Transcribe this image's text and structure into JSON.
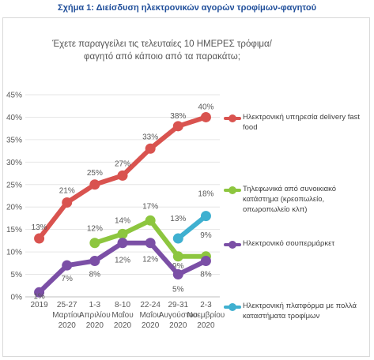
{
  "caption": "Σχήμα 1: Διείσδυση ηλεκτρονικών αγορών τροφίμων-φαγητού",
  "chart_data": {
    "type": "line",
    "title": "Έχετε παραγγείλει τις τελευταίες 10 ΗΜΕΡΕΣ τρόφιμα/φαγητό από κάποιο από τα παρακάτω;",
    "xlabel": "",
    "ylabel": "",
    "ylim": [
      0,
      45
    ],
    "yticks": [
      "0%",
      "5%",
      "10%",
      "15%",
      "20%",
      "25%",
      "30%",
      "35%",
      "40%",
      "45%"
    ],
    "categories": [
      [
        "2019"
      ],
      [
        "25-27",
        "Μαρτίου",
        "2020"
      ],
      [
        "1-3",
        "Απριλίου",
        "2020"
      ],
      [
        "8-10",
        "Μαΐου",
        "2020"
      ],
      [
        "22-24",
        "Μαΐου",
        "2020"
      ],
      [
        "29-31",
        "Αυγούστου",
        "2020"
      ],
      [
        "2-3",
        "Νοεμβρίου",
        "2020"
      ]
    ],
    "grid": true,
    "legend_position": "right",
    "series": [
      {
        "name": "Ηλεκτρονική υπηρεσία delivery fast food",
        "color": "#d9534f",
        "values": [
          13,
          21,
          25,
          27,
          33,
          38,
          40
        ],
        "labels": [
          "13%",
          "21%",
          "25%",
          "27%",
          "33%",
          "38%",
          "40%"
        ]
      },
      {
        "name": "Τηλεφωνικά από συνοικιακό κατάστημα (κρεοπωλείο, οπωροπωλείο κλπ)",
        "color": "#8dc63f",
        "values": [
          null,
          null,
          12,
          14,
          17,
          9,
          9
        ],
        "labels": [
          null,
          null,
          "12%",
          "14%",
          "17%",
          "9%",
          "9%"
        ]
      },
      {
        "name": "Ηλεκτρονικό σουπερμάρκετ",
        "color": "#7b4fa6",
        "values": [
          1,
          7,
          8,
          12,
          12,
          5,
          8
        ],
        "labels": [
          "1%",
          "7%",
          "8%",
          "12%",
          "12%",
          "5%",
          "8%"
        ]
      },
      {
        "name": "Ηλεκτρονική πλατφόρμα με πολλά καταστήματα τροφίμων",
        "color": "#3fb0d0",
        "values": [
          null,
          null,
          null,
          null,
          null,
          13,
          18
        ],
        "labels": [
          null,
          null,
          null,
          null,
          null,
          "13%",
          "18%"
        ]
      }
    ]
  }
}
